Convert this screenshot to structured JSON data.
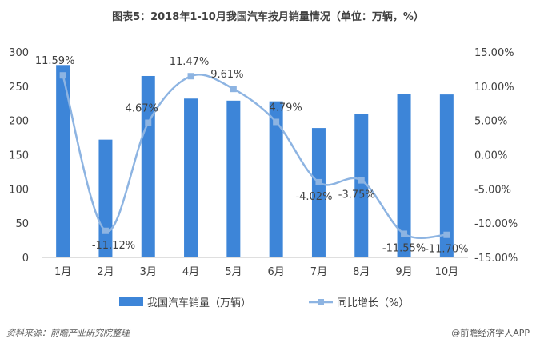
{
  "chart_data": {
    "type": "bar",
    "title": "图表5：2018年1-10月我国汽车按月销量情况（单位：万辆，%）",
    "categories": [
      "1月",
      "2月",
      "3月",
      "4月",
      "5月",
      "6月",
      "7月",
      "8月",
      "9月",
      "10月"
    ],
    "series": [
      {
        "name": "我国汽车销量（万辆）",
        "type": "bar",
        "axis": "left",
        "color": "#3D85D8",
        "values": [
          281,
          172,
          265,
          232,
          229,
          228,
          189,
          210,
          239,
          238
        ]
      },
      {
        "name": "同比增长（%）",
        "type": "line",
        "axis": "right",
        "color": "#8DB4E2",
        "values": [
          11.59,
          -11.12,
          4.67,
          11.47,
          9.61,
          4.79,
          -4.02,
          -3.75,
          -11.55,
          -11.7
        ],
        "labels": [
          "11.59%",
          "-11.12%",
          "4.67%",
          "11.47%",
          "9.61%",
          "4.79%",
          "-4.02%",
          "-3.75%",
          "-11.55%",
          "-11.70%"
        ]
      }
    ],
    "y_left": {
      "min": 0,
      "max": 300,
      "ticks": [
        "0",
        "50",
        "100",
        "150",
        "200",
        "250",
        "300"
      ]
    },
    "y_right": {
      "min": -15,
      "max": 15,
      "ticks": [
        "-15.00%",
        "-10.00%",
        "-5.00%",
        "0.00%",
        "5.00%",
        "10.00%",
        "15.00%"
      ]
    },
    "grid": false,
    "legend_position": "bottom"
  },
  "footer": {
    "source": "资料来源：前瞻产业研究院整理",
    "credit": "@前瞻经济学人APP"
  }
}
